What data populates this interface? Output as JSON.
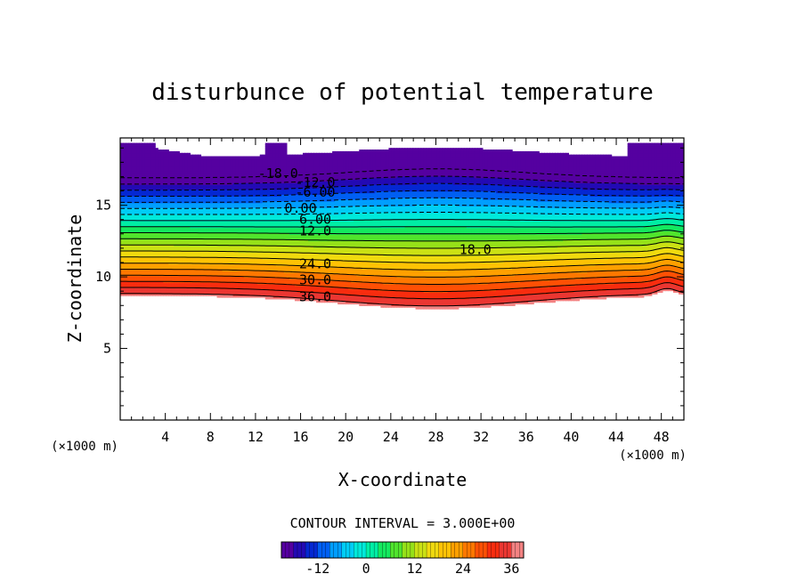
{
  "chart_data": {
    "type": "contour",
    "title": "disturbunce of potential temperature",
    "xlabel": "X-coordinate",
    "ylabel": "Z-coordinate",
    "x_unit": "(×1000 m)",
    "y_unit": "(×1000 m)",
    "xlim": [
      0,
      50
    ],
    "ylim": [
      0,
      19.7
    ],
    "x_ticks": [
      "4",
      "8",
      "12",
      "16",
      "20",
      "24",
      "28",
      "32",
      "36",
      "40",
      "44",
      "48"
    ],
    "x_tick_values": [
      4,
      8,
      12,
      16,
      20,
      24,
      28,
      32,
      36,
      40,
      44,
      48
    ],
    "y_ticks": [
      "5",
      "10",
      "15"
    ],
    "y_tick_values": [
      5,
      10,
      15
    ],
    "contour_interval_text": "CONTOUR INTERVAL = 3.000E+00",
    "contour_interval": 3.0,
    "levels_range": [
      -21,
      39
    ],
    "negative_contours": "dashed",
    "contour_labels": [
      {
        "text": "-18.0",
        "x": 14.0,
        "z": 17.2
      },
      {
        "text": "-12.0",
        "x": 17.3,
        "z": 16.6
      },
      {
        "text": "-6.00",
        "x": 17.3,
        "z": 15.9
      },
      {
        "text": "0.00",
        "x": 16.0,
        "z": 14.8
      },
      {
        "text": "6.00",
        "x": 17.3,
        "z": 14.0
      },
      {
        "text": "12.0",
        "x": 17.3,
        "z": 13.2
      },
      {
        "text": "18.0",
        "x": 31.5,
        "z": 11.9
      },
      {
        "text": "24.0",
        "x": 17.3,
        "z": 10.9
      },
      {
        "text": "30.0",
        "x": 17.3,
        "z": 9.8
      },
      {
        "text": "36.0",
        "x": 17.3,
        "z": 8.6
      }
    ],
    "colorbar": {
      "ticks": [
        "-12",
        "0",
        "12",
        "24",
        "36"
      ],
      "tick_values": [
        -12,
        0,
        12,
        24,
        36
      ],
      "range": [
        -21,
        39
      ]
    }
  }
}
